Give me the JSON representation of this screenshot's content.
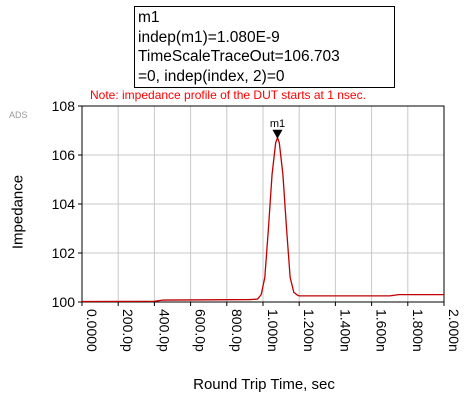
{
  "watermark": "ADS",
  "note": "Note: impedance profile of the DUT starts at 1 nsec.",
  "marker_box": {
    "lines": [
      "m1",
      "indep(m1)=1.080E-9",
      "TimeScaleTraceOut=106.703",
      "=0, indep(index, 2)=0"
    ]
  },
  "chart_data": {
    "type": "line",
    "xlabel": "Round Trip Time, sec",
    "ylabel": "Impedance",
    "xlim": [
      0,
      2e-09
    ],
    "ylim": [
      100,
      108
    ],
    "x_ticks": [
      {
        "value": 0.0,
        "label": "0.0000"
      },
      {
        "value": 2e-10,
        "label": "200.0p"
      },
      {
        "value": 4e-10,
        "label": "400.0p"
      },
      {
        "value": 6e-10,
        "label": "600.0p"
      },
      {
        "value": 8e-10,
        "label": "800.0p"
      },
      {
        "value": 1e-09,
        "label": "1.000n"
      },
      {
        "value": 1.2e-09,
        "label": "1.200n"
      },
      {
        "value": 1.4e-09,
        "label": "1.400n"
      },
      {
        "value": 1.6e-09,
        "label": "1.600n"
      },
      {
        "value": 1.8e-09,
        "label": "1.800n"
      },
      {
        "value": 2e-09,
        "label": "2.000n"
      }
    ],
    "y_ticks": [
      {
        "value": 100,
        "label": "100"
      },
      {
        "value": 102,
        "label": "102"
      },
      {
        "value": 104,
        "label": "104"
      },
      {
        "value": 106,
        "label": "106"
      },
      {
        "value": 108,
        "label": "108"
      }
    ],
    "grid": true,
    "series": [
      {
        "color": "#c00000",
        "x": [
          0,
          4e-10,
          4.5e-10,
          9.3e-10,
          9.7e-10,
          9.9e-10,
          1.01e-09,
          1.03e-09,
          1.05e-09,
          1.07e-09,
          1.08e-09,
          1.09e-09,
          1.11e-09,
          1.13e-09,
          1.15e-09,
          1.17e-09,
          1.19e-09,
          1.2e-09,
          1.22e-09,
          1.3e-09,
          1.7e-09,
          1.75e-09,
          2e-09
        ],
        "y": [
          100.02,
          100.03,
          100.08,
          100.1,
          100.12,
          100.3,
          101.0,
          103.0,
          105.2,
          106.5,
          106.703,
          106.5,
          105.2,
          103.0,
          101.0,
          100.4,
          100.28,
          100.25,
          100.25,
          100.25,
          100.25,
          100.3,
          100.3
        ]
      }
    ],
    "markers": [
      {
        "name": "m1",
        "x": 1.08e-09,
        "y": 106.703
      }
    ]
  }
}
